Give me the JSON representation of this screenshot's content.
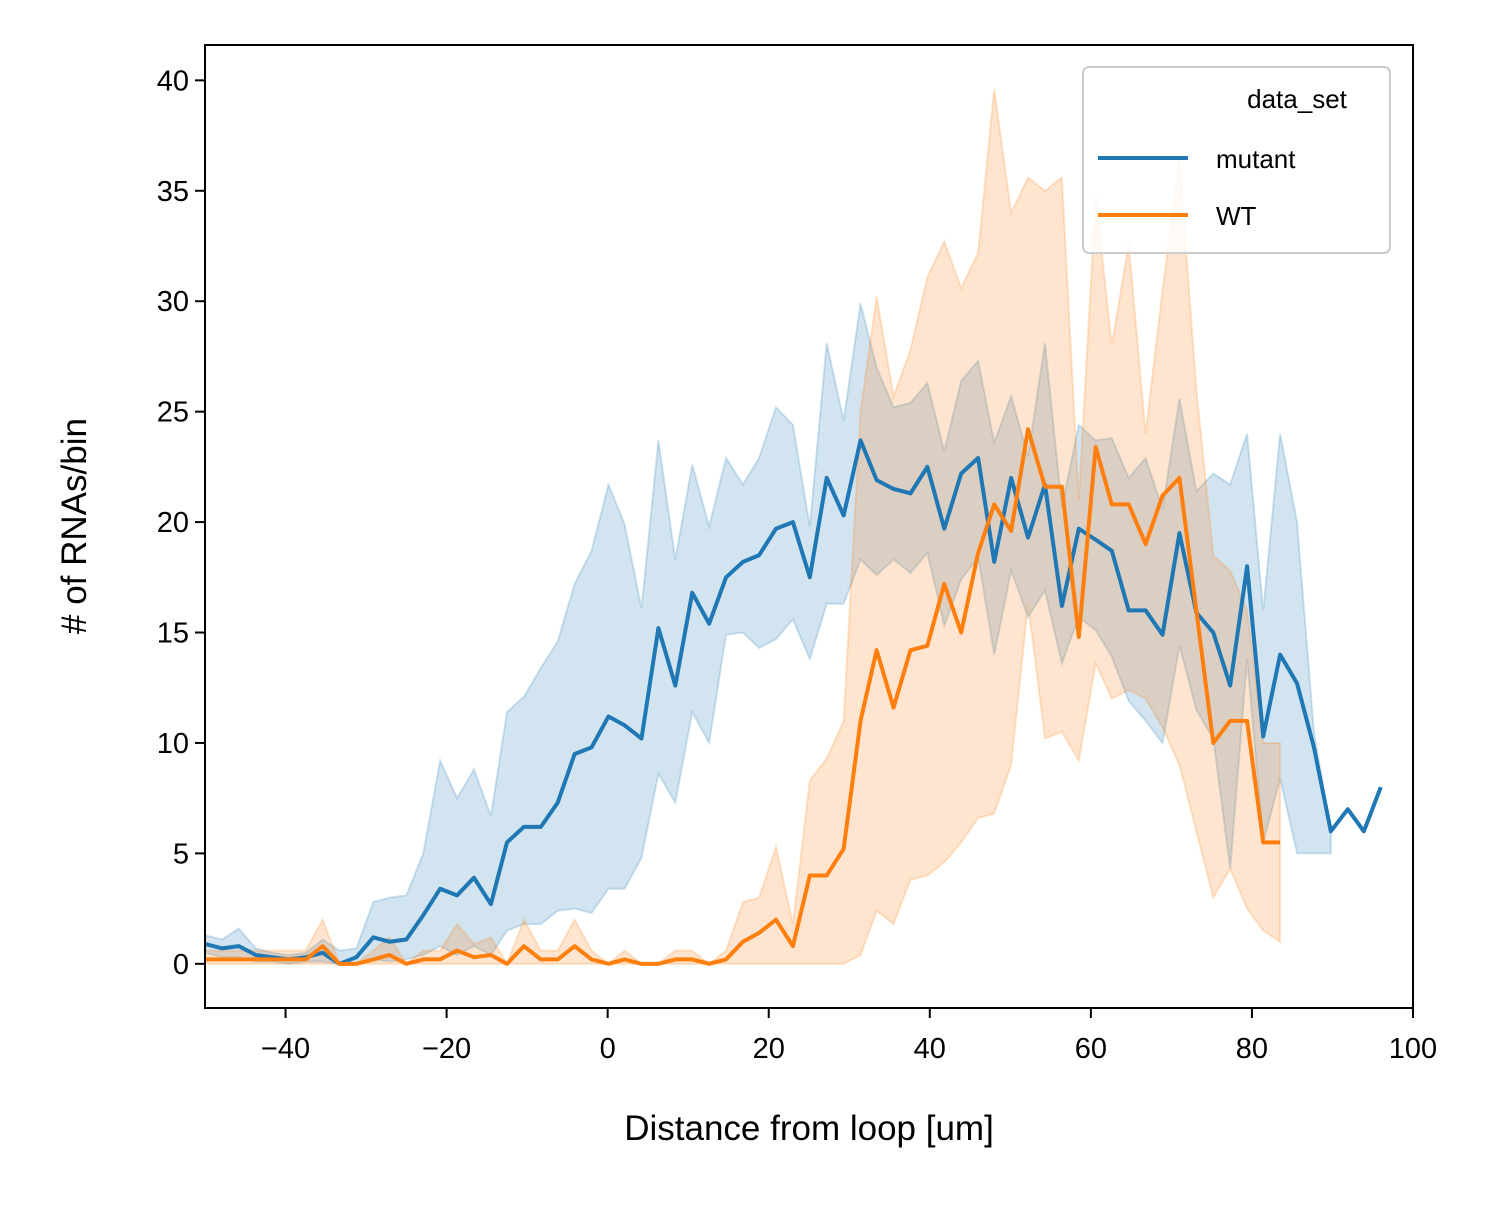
{
  "chart_data": {
    "type": "line",
    "x_label": "Distance from loop [um]",
    "y_label": "# of RNAs/bin",
    "legend_title": "data_set",
    "legend": "upper right",
    "band_opacity": 0.2,
    "xlim": [
      -50,
      100
    ],
    "ylim": [
      -2,
      41.6
    ],
    "xticks": [
      {
        "value": -40,
        "label": "−40"
      },
      {
        "value": -20,
        "label": "−20"
      },
      0,
      20,
      40,
      60,
      80,
      100
    ],
    "yticks": [
      0,
      5,
      10,
      15,
      20,
      25,
      30,
      35,
      40
    ],
    "x": [
      -50,
      -47.9,
      -45.8,
      -43.7,
      -41.7,
      -39.6,
      -37.5,
      -35.4,
      -33.3,
      -31.2,
      -29.1,
      -27.1,
      -25.0,
      -22.9,
      -20.8,
      -18.7,
      -16.6,
      -14.5,
      -12.5,
      -10.4,
      -8.3,
      -6.2,
      -4.1,
      -2.0,
      0.1,
      2.1,
      4.2,
      6.3,
      8.4,
      10.5,
      12.6,
      14.7,
      16.8,
      18.8,
      20.9,
      23.0,
      25.1,
      27.2,
      29.3,
      31.4,
      33.4,
      35.5,
      37.6,
      39.7,
      41.8,
      43.9,
      46.0,
      48.0,
      50.1,
      52.2,
      54.3,
      56.4,
      58.5,
      60.6,
      62.6,
      64.7,
      66.8,
      68.9,
      71.0,
      73.1,
      75.2,
      77.3,
      79.4,
      81.4,
      83.5,
      85.6,
      87.7,
      89.8,
      91.9,
      93.9,
      96.0
    ],
    "series": [
      {
        "name": "mutant",
        "color": "#1f77b4",
        "values": [
          0.9,
          0.7,
          0.8,
          0.4,
          0.3,
          0.2,
          0.3,
          0.5,
          0.0,
          0.3,
          1.2,
          1.0,
          1.1,
          2.2,
          3.4,
          3.1,
          3.9,
          2.7,
          5.5,
          6.2,
          6.2,
          7.3,
          9.5,
          9.8,
          11.2,
          10.8,
          10.2,
          15.2,
          12.6,
          16.8,
          15.4,
          17.5,
          18.2,
          18.5,
          19.7,
          20.0,
          17.5,
          22.0,
          20.3,
          23.7,
          21.9,
          21.5,
          21.3,
          22.5,
          19.7,
          22.2,
          22.9,
          18.2,
          22.0,
          19.3,
          21.7,
          16.2,
          19.7,
          19.2,
          18.7,
          16.0,
          16.0,
          14.9,
          19.5,
          15.9,
          15.0,
          12.6,
          18.0,
          10.3,
          14.0,
          12.7,
          9.8,
          6.0,
          7.0,
          6.0,
          8.0
        ],
        "upper": [
          1.3,
          1.1,
          1.6,
          0.7,
          0.5,
          0.4,
          0.5,
          1.1,
          0.6,
          0.7,
          2.8,
          3.0,
          3.1,
          5.0,
          9.2,
          7.5,
          8.8,
          6.7,
          11.4,
          12.1,
          13.4,
          14.6,
          17.2,
          18.7,
          21.7,
          19.9,
          16.1,
          23.7,
          18.3,
          22.6,
          19.8,
          22.9,
          21.7,
          22.9,
          25.2,
          24.4,
          19.8,
          28.1,
          24.6,
          29.9,
          27.0,
          25.2,
          25.4,
          26.3,
          23.2,
          26.4,
          27.3,
          23.6,
          25.7,
          23.0,
          28.1,
          20.7,
          24.4,
          23.7,
          23.8,
          22.0,
          22.9,
          20.6,
          25.6,
          21.4,
          22.2,
          21.7,
          24.0,
          16.0,
          24.0,
          20.0,
          10.5,
          6.0,
          null,
          null,
          null
        ],
        "lower": [
          0.5,
          0.3,
          0.3,
          0.1,
          0.1,
          0.0,
          0.1,
          0.1,
          0.0,
          0.0,
          0.2,
          0.1,
          0.2,
          0.4,
          0.8,
          0.4,
          0.8,
          0.4,
          1.5,
          1.8,
          1.8,
          2.4,
          2.5,
          2.3,
          3.4,
          3.4,
          4.8,
          8.6,
          7.3,
          11.4,
          10.0,
          14.9,
          15.0,
          14.3,
          14.7,
          15.6,
          13.8,
          16.3,
          16.3,
          18.3,
          17.6,
          18.3,
          17.7,
          18.6,
          15.3,
          17.4,
          18.4,
          14.0,
          17.8,
          15.7,
          16.9,
          13.6,
          15.7,
          15.1,
          13.9,
          11.9,
          11.0,
          10.0,
          14.4,
          11.5,
          10.2,
          4.3,
          13.8,
          5.5,
          8.4,
          5.0,
          5.0,
          5.0,
          null,
          null,
          null
        ]
      },
      {
        "name": "WT",
        "color": "#ff7f0e",
        "values": [
          0.2,
          0.2,
          0.2,
          0.2,
          0.2,
          0.2,
          0.2,
          0.8,
          0.0,
          0.0,
          0.2,
          0.4,
          0.0,
          0.2,
          0.2,
          0.6,
          0.3,
          0.4,
          0.0,
          0.8,
          0.2,
          0.2,
          0.8,
          0.2,
          0.0,
          0.2,
          0.0,
          0.0,
          0.2,
          0.2,
          0.0,
          0.2,
          1.0,
          1.4,
          2.0,
          0.8,
          4.0,
          4.0,
          5.2,
          11.0,
          14.2,
          11.6,
          14.2,
          14.4,
          17.2,
          15.0,
          18.6,
          20.8,
          19.6,
          24.2,
          21.6,
          21.6,
          14.8,
          23.4,
          20.8,
          20.8,
          19.0,
          21.2,
          22.0,
          16.0,
          10.0,
          11.0,
          11.0,
          5.5,
          5.5,
          null,
          null,
          null,
          null,
          null,
          null
        ],
        "upper": [
          0.6,
          0.6,
          0.6,
          0.6,
          0.6,
          0.6,
          0.6,
          2.0,
          0.0,
          0.0,
          0.6,
          1.2,
          0.0,
          0.6,
          0.6,
          1.8,
          0.9,
          1.2,
          0.0,
          2.0,
          0.6,
          0.6,
          2.0,
          0.6,
          0.0,
          0.6,
          0.0,
          0.0,
          0.6,
          0.6,
          0.0,
          0.6,
          2.8,
          3.0,
          5.3,
          1.8,
          8.3,
          9.3,
          11.0,
          25.0,
          30.2,
          25.7,
          27.8,
          31.1,
          32.7,
          30.6,
          32.2,
          39.6,
          34.0,
          35.6,
          35.0,
          35.6,
          21.0,
          34.7,
          28.0,
          32.6,
          24.0,
          30.5,
          36.4,
          26.0,
          18.5,
          17.8,
          16.0,
          10.0,
          10.0,
          null,
          null,
          null,
          null,
          null,
          null
        ],
        "lower": [
          0.0,
          0.0,
          0.0,
          0.0,
          0.0,
          0.0,
          0.0,
          0.0,
          0.0,
          0.0,
          0.0,
          0.0,
          0.0,
          0.0,
          0.0,
          0.0,
          0.0,
          0.0,
          0.0,
          0.0,
          0.0,
          0.0,
          0.0,
          0.0,
          0.0,
          0.0,
          0.0,
          0.0,
          0.0,
          0.0,
          0.0,
          0.0,
          0.0,
          0.0,
          0.0,
          0.0,
          0.0,
          0.0,
          0.0,
          0.4,
          2.4,
          1.8,
          3.8,
          4.0,
          4.6,
          5.5,
          6.6,
          6.8,
          9.0,
          16.3,
          10.2,
          10.5,
          9.2,
          13.6,
          12.0,
          12.4,
          12.0,
          10.7,
          9.0,
          6.0,
          3.0,
          4.3,
          2.5,
          1.5,
          1.0,
          null,
          null,
          null,
          null,
          null,
          null
        ]
      }
    ]
  }
}
